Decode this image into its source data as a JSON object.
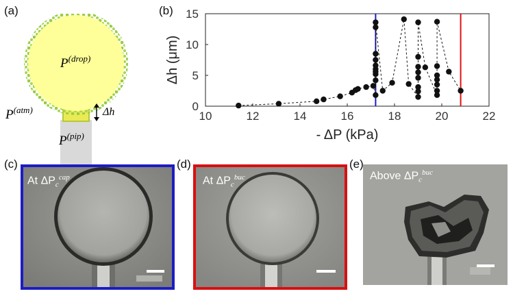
{
  "panels": {
    "a": {
      "label": "(a)",
      "p_drop": "P",
      "p_drop_sup": "(drop)",
      "p_atm": "P",
      "p_atm_sup": "(atm)",
      "p_pip": "P",
      "p_pip_sup": "(pip)",
      "dh": "Δh",
      "colors": {
        "drop_fill": "#ffff99",
        "drop_edge": "#99cc44",
        "pipette": "#d9d9d9",
        "neck": "#e8e84a"
      }
    },
    "b": {
      "label": "(b)"
    },
    "c": {
      "label": "(c)",
      "caption_prefix": "At ΔP",
      "caption_sub": "c",
      "caption_sup": "cap",
      "border_color": "#1c1cc4"
    },
    "d": {
      "label": "(d)",
      "caption_prefix": "At ΔP",
      "caption_sub": "c",
      "caption_sup": "buc",
      "border_color": "#d81010"
    },
    "e": {
      "label": "(e)",
      "caption_prefix": "Above ΔP",
      "caption_sub": "c",
      "caption_sup": "buc"
    }
  },
  "chart_data": {
    "type": "scatter",
    "xlabel": "- ΔP (kPa)",
    "ylabel": "Δh (μm)",
    "xlim": [
      10,
      22
    ],
    "ylim": [
      0,
      15
    ],
    "xticks": [
      "10",
      "12",
      "14",
      "16",
      "18",
      "20",
      "22"
    ],
    "yticks": [
      "0",
      "5",
      "10",
      "15"
    ],
    "vlines": [
      {
        "x": 17.2,
        "color": "#1c1cc4"
      },
      {
        "x": 20.8,
        "color": "#e01010"
      }
    ],
    "points": [
      [
        11.4,
        0.1
      ],
      [
        13.1,
        0.4
      ],
      [
        14.7,
        0.8
      ],
      [
        15.0,
        1.1
      ],
      [
        15.7,
        1.6
      ],
      [
        16.2,
        2.2
      ],
      [
        16.35,
        2.6
      ],
      [
        16.45,
        2.8
      ],
      [
        16.8,
        3.1
      ],
      [
        17.1,
        3.3
      ],
      [
        17.2,
        1.8
      ],
      [
        17.2,
        4.2
      ],
      [
        17.2,
        5.2
      ],
      [
        17.2,
        5.6
      ],
      [
        17.2,
        6.0
      ],
      [
        17.2,
        6.6
      ],
      [
        17.2,
        7.5
      ],
      [
        17.2,
        8.5
      ],
      [
        17.2,
        12.8
      ],
      [
        17.2,
        13.6
      ],
      [
        17.5,
        2.5
      ],
      [
        17.9,
        3.8
      ],
      [
        18.4,
        14.1
      ],
      [
        18.6,
        3.6
      ],
      [
        19.0,
        1.5
      ],
      [
        19.0,
        2.4
      ],
      [
        19.0,
        3.1
      ],
      [
        19.0,
        4.6
      ],
      [
        19.0,
        5.5
      ],
      [
        19.0,
        6.4
      ],
      [
        19.0,
        8.0
      ],
      [
        19.0,
        13.6
      ],
      [
        19.3,
        6.3
      ],
      [
        19.8,
        1.8
      ],
      [
        19.8,
        2.5
      ],
      [
        19.8,
        3.5
      ],
      [
        19.8,
        4.3
      ],
      [
        19.8,
        5.0
      ],
      [
        19.8,
        6.5
      ],
      [
        19.8,
        13.7
      ],
      [
        20.3,
        5.6
      ],
      [
        20.8,
        2.5
      ]
    ]
  }
}
